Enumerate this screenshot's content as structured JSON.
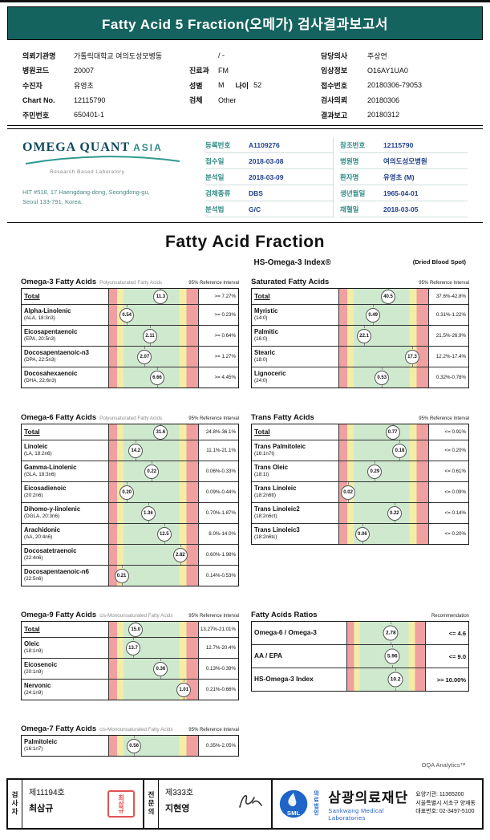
{
  "page": {
    "title_bar": "Fatty Acid 5 Fraction(오메가) 검사결과보고서"
  },
  "patient": {
    "col1": [
      {
        "label": "의뢰기관명",
        "value": "가톨릭대학교 여의도성모병동"
      },
      {
        "label": "병원코드",
        "value": "20007"
      },
      {
        "label": "수진자",
        "value": "유영초"
      },
      {
        "label": "Chart No.",
        "value": "12115790"
      },
      {
        "label": "주민번호",
        "value": "650401-1"
      }
    ],
    "col2": [
      {
        "label": "",
        "value": "/ -"
      },
      {
        "label": "진료과",
        "value": "FM"
      },
      {
        "label": "성별",
        "value": "M",
        "label2": "나이",
        "value2": "52"
      },
      {
        "label": "검체",
        "value": "Other"
      }
    ],
    "col3": [
      {
        "label": "담당의사",
        "value": "주상연"
      },
      {
        "label": "임상정보",
        "value": "O16AY1UA0"
      },
      {
        "label": "접수번호",
        "value": "20180306-79053"
      },
      {
        "label": "검사의뢰",
        "value": "20180306"
      },
      {
        "label": "결과보고",
        "value": "20180312"
      }
    ]
  },
  "lab": {
    "brand_main": "OMEGA QUANT",
    "brand_asia": "ASIA",
    "tagline": "Research Based Laboratory",
    "address_line1": "HIT #518, 17 Haengdang-dong, Seongdong-gu,",
    "address_line2": "Seoul 133-791, Korea.",
    "info_left": [
      {
        "label": "등록번호",
        "value": "A1109276"
      },
      {
        "label": "접수일",
        "value": "2018-03-08"
      },
      {
        "label": "분석일",
        "value": "2018-03-09"
      },
      {
        "label": "검체종류",
        "value": "DBS"
      },
      {
        "label": "분석법",
        "value": "G/C"
      }
    ],
    "info_right": [
      {
        "label": "참조번호",
        "value": "12115790"
      },
      {
        "label": "병원명",
        "value": "여의도성모병원"
      },
      {
        "label": "환자명",
        "value": "유영초 (M)"
      },
      {
        "label": "생년월일",
        "value": "1965-04-01"
      },
      {
        "label": "채혈일",
        "value": "2018-03-05"
      }
    ]
  },
  "report": {
    "main_title": "Fatty Acid Fraction",
    "index_label": "HS-Omega-3 Index®",
    "spot_label": "(Dried Blood Spot)",
    "analytics_label": "OQA Analytics™"
  },
  "tables": [
    {
      "id": "omega3",
      "title": "Omega-3 Fatty Acids",
      "subtitle": "Polyunsaturated Fatty Acids",
      "ref_header": "95% Reference Interval",
      "rows": [
        {
          "name": "Total",
          "sub": "",
          "total": true,
          "value": "11.3",
          "ref": ">= 7.27%",
          "pos": 58
        },
        {
          "name": "Alpha-Linolenic",
          "sub": "(ALA, 18:3n3)",
          "value": "0.54",
          "ref": ">= 0.23%",
          "pos": 20
        },
        {
          "name": "Eicosapentaenoic",
          "sub": "(EPA, 20:5n3)",
          "value": "2.11",
          "ref": ">= 0.64%",
          "pos": 46
        },
        {
          "name": "Docosapentaenoic-n3",
          "sub": "(DPA, 22:5n3)",
          "value": "2.07",
          "ref": ">= 1.27%",
          "pos": 40
        },
        {
          "name": "Docosahexaenoic",
          "sub": "(DHA, 22:6n3)",
          "value": "6.66",
          "ref": ">= 4.45%",
          "pos": 54
        }
      ]
    },
    {
      "id": "saturated",
      "title": "Saturated Fatty Acids",
      "subtitle": "",
      "ref_header": "95% Reference Interval",
      "rows": [
        {
          "name": "Total",
          "sub": "",
          "total": true,
          "value": "40.5",
          "ref": "37.6%-42.8%",
          "pos": 55
        },
        {
          "name": "Myristic",
          "sub": "(14:0)",
          "value": "0.49",
          "ref": "0.31%-1.22%",
          "pos": 38
        },
        {
          "name": "Palmitic",
          "sub": "(16:0)",
          "value": "22.1",
          "ref": "21.5%-26.9%",
          "pos": 28
        },
        {
          "name": "Stearic",
          "sub": "(18:0)",
          "value": "17.3",
          "ref": "12.2%-17.4%",
          "pos": 82
        },
        {
          "name": "Lignoceric",
          "sub": "(24:0)",
          "value": "0.53",
          "ref": "0.32%-0.78%",
          "pos": 48
        }
      ]
    },
    {
      "id": "omega6",
      "title": "Omega-6 Fatty Acids",
      "subtitle": "Polyunsaturated Fatty Acids",
      "ref_header": "95% Reference Interval",
      "rows": [
        {
          "name": "Total",
          "sub": "",
          "total": true,
          "value": "31.6",
          "ref": "24.8%-36.1%",
          "pos": 58
        },
        {
          "name": "Linoleic",
          "sub": "(LA, 18:2n6)",
          "value": "14.2",
          "ref": "11.1%-21.1%",
          "pos": 30
        },
        {
          "name": "Gamma-Linolenic",
          "sub": "(GLA, 18:3n6)",
          "value": "0.22",
          "ref": "0.06%-0.33%",
          "pos": 48
        },
        {
          "name": "Eicosadienoic",
          "sub": "(20:2n6)",
          "value": "0.20",
          "ref": "0.09%-0.44%",
          "pos": 20
        },
        {
          "name": "Dihomo-y-linolenic",
          "sub": "(DGLA, 20:3n6)",
          "value": "1.36",
          "ref": "0.70%-1.87%",
          "pos": 44
        },
        {
          "name": "Arachidonic",
          "sub": "(AA, 20:4n6)",
          "value": "12.5",
          "ref": "8.0%-14.0%",
          "pos": 62
        },
        {
          "name": "Docosatetraenoic",
          "sub": "(22:4n6)",
          "value": "2.82",
          "ref": "0.60%-1.98%",
          "pos": 80
        },
        {
          "name": "Docosapentaenoic-n6",
          "sub": "(22:5n6)",
          "value": "0.21",
          "ref": "0.14%-0.53%",
          "pos": 14
        }
      ]
    },
    {
      "id": "trans",
      "title": "Trans Fatty Acids",
      "subtitle": "",
      "ref_header": "95% Reference Interval",
      "rows": [
        {
          "name": "Total",
          "sub": "",
          "total": true,
          "value": "0.77",
          "ref": "<= 0.91%",
          "pos": 60
        },
        {
          "name": "Trans Palmitoleic",
          "sub": "(16:1n7t)",
          "value": "0.18",
          "ref": "<= 0.20%",
          "pos": 68
        },
        {
          "name": "Trans Oleic",
          "sub": "(18:1t)",
          "value": "0.29",
          "ref": "<= 0.61%",
          "pos": 40
        },
        {
          "name": "Trans Linoleic",
          "sub": "(18:2n6tt)",
          "value": "0.02",
          "ref": "<= 0.09%",
          "pos": 10
        },
        {
          "name": "Trans Linoleic2",
          "sub": "(18:2n6ct)",
          "value": "0.22",
          "ref": "<= 0.14%",
          "pos": 62
        },
        {
          "name": "Trans Linoleic3",
          "sub": "(18:2n6tc)",
          "value": "0.06",
          "ref": "<= 0.20%",
          "pos": 26
        }
      ]
    },
    {
      "id": "omega9",
      "title": "Omega-9 Fatty Acids",
      "subtitle": "cis-Monounsaturated Fatty Acids",
      "ref_header": "95% Reference Interval",
      "rows": [
        {
          "name": "Total",
          "sub": "",
          "total": true,
          "value": "15.0",
          "ref": "13.27%-21.01%",
          "pos": 30
        },
        {
          "name": "Oleic",
          "sub": "(18:1n9)",
          "value": "13.7",
          "ref": "12.7%-20.4%",
          "pos": 27
        },
        {
          "name": "Eicosenoic",
          "sub": "(20:1n9)",
          "value": "0.36",
          "ref": "0.13%-0.39%",
          "pos": 58
        },
        {
          "name": "Nervonic",
          "sub": "(24:1n9)",
          "value": "1.01",
          "ref": "0.21%-0.66%",
          "pos": 84
        }
      ]
    },
    {
      "id": "ratios",
      "title": "Fatty Acids Ratios",
      "subtitle": "",
      "ref_header": "Recommendation",
      "variant": "ratios",
      "rows": [
        {
          "name": "Omega-6 / Omega-3",
          "sub": "",
          "value": "2.78",
          "ref": "<= 4.6",
          "pos": 56
        },
        {
          "name": "AA / EPA",
          "sub": "",
          "value": "5.96",
          "ref": "<= 9.0",
          "pos": 58
        },
        {
          "name": "HS-Omega-3 Index",
          "sub": "",
          "value": "10.2",
          "ref": ">= 10.00%",
          "pos": 62
        }
      ]
    },
    {
      "id": "omega7",
      "title": "Omega-7 Fatty Acids",
      "subtitle": "cis-Monounsaturated Fatty Acids",
      "ref_header": "95% Reference Interval",
      "rows": [
        {
          "name": "Palmitoleic",
          "sub": "(16:1n7)",
          "value": "0.56",
          "ref": "0.35%-2.05%",
          "pos": 28
        }
      ]
    }
  ],
  "footer": {
    "examiner": {
      "role": "검사자",
      "cert": "제11194호",
      "name": "최삼규"
    },
    "specialist": {
      "role": "전문의",
      "cert": "제333호",
      "name": "지현영"
    },
    "org": {
      "logo_text": "SML",
      "corp_type1": "의료",
      "corp_type2": "법인",
      "name": "삼광의료재단",
      "name_en": "Sankwang Medical Laboratories",
      "line1": "요양기관: 11365200",
      "line2": "서울특별시 서초구 양재동",
      "line3": "대표번호: 02-3497-5100"
    }
  },
  "colors": {
    "header_teal": "#15635e",
    "zone_red": "#f0a0a0",
    "zone_yellow": "#f3eda6",
    "zone_green": "#cfe9cf",
    "label_teal": "#2e8b84",
    "value_navy": "#203f8f",
    "logo_blue": "#1f64c8",
    "stamp_red": "#e04040"
  }
}
